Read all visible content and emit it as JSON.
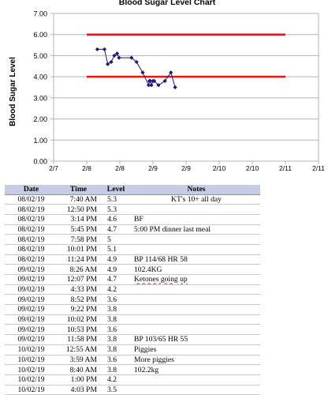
{
  "chart_data": {
    "type": "line",
    "title": "Blood Sugar Level Chart",
    "ylabel": "Blood Sugar Level",
    "xlabel": "",
    "ylim": [
      0,
      7
    ],
    "yticks": [
      "0.00",
      "1.00",
      "2.00",
      "3.00",
      "4.00",
      "5.00",
      "6.00",
      "7.00"
    ],
    "xlim_days": [
      0,
      8
    ],
    "xticks": [
      "2/7",
      "2/8",
      "2/8",
      "2/9",
      "2/9",
      "2/10",
      "2/10",
      "2/11",
      "2/11"
    ],
    "grid": "horizontal",
    "series": [
      {
        "points": [
          {
            "x": "08/02/19 07:40",
            "y": 5.3
          },
          {
            "x": "08/02/19 12:50",
            "y": 5.3
          },
          {
            "x": "08/02/19 15:14",
            "y": 4.6
          },
          {
            "x": "08/02/19 17:45",
            "y": 4.7
          },
          {
            "x": "08/02/19 19:58",
            "y": 5.0
          },
          {
            "x": "08/02/19 22:01",
            "y": 5.1
          },
          {
            "x": "08/02/19 23:24",
            "y": 4.9
          },
          {
            "x": "09/02/19 08:26",
            "y": 4.9
          },
          {
            "x": "09/02/19 12:07",
            "y": 4.7
          },
          {
            "x": "09/02/19 16:33",
            "y": 4.2
          },
          {
            "x": "09/02/19 20:52",
            "y": 3.6
          },
          {
            "x": "09/02/19 21:22",
            "y": 3.8
          },
          {
            "x": "09/02/19 22:02",
            "y": 3.8
          },
          {
            "x": "09/02/19 22:53",
            "y": 3.6
          },
          {
            "x": "09/02/19 23:58",
            "y": 3.8
          },
          {
            "x": "10/02/19 00:55",
            "y": 3.8
          },
          {
            "x": "10/02/19 03:59",
            "y": 3.6
          },
          {
            "x": "10/02/19 08:40",
            "y": 3.8
          },
          {
            "x": "10/02/19 13:00",
            "y": 4.2
          },
          {
            "x": "10/02/19 16:03",
            "y": 3.5
          }
        ],
        "color": "#1a1a7a"
      },
      {
        "values": [
          6.0,
          6.0
        ],
        "color": "#ee1111"
      },
      {
        "values": [
          4.0,
          4.0
        ],
        "color": "#ee1111"
      }
    ]
  },
  "table": {
    "headers": [
      "Date",
      "Time",
      "Level",
      "Notes"
    ],
    "rows": [
      [
        "08/02/19",
        "7:40 AM",
        "5.3",
        "KT's 10+ all day"
      ],
      [
        "08/02/19",
        "12:50 PM",
        "5.3",
        ""
      ],
      [
        "08/02/19",
        "3:14 PM",
        "4.6",
        "BF"
      ],
      [
        "08/02/19",
        "5:45 PM",
        "4.7",
        "5:00 PM dinner last meal"
      ],
      [
        "08/02/19",
        "7:58 PM",
        "5",
        ""
      ],
      [
        "08/02/19",
        "10:01 PM",
        "5.1",
        ""
      ],
      [
        "08/02/19",
        "11:24 PM",
        "4.9",
        "BP 114/68 HR 58"
      ],
      [
        "09/02/19",
        "8:26 AM",
        "4.9",
        "102.4KG"
      ],
      [
        "09/02/19",
        "12:07 PM",
        "4.7",
        "Ketones going up"
      ],
      [
        "09/02/19",
        "4:33 PM",
        "4.2",
        ""
      ],
      [
        "09/02/19",
        "8:52 PM",
        "3.6",
        ""
      ],
      [
        "09/02/19",
        "9:22 PM",
        "3.8",
        ""
      ],
      [
        "09/02/19",
        "10:02 PM",
        "3.8",
        ""
      ],
      [
        "09/02/19",
        "10:53 PM",
        "3.6",
        ""
      ],
      [
        "09/02/19",
        "11:58 PM",
        "3.8",
        "BP 103/65 HR 55"
      ],
      [
        "10/02/19",
        "12:55 AM",
        "3.8",
        "Piggies"
      ],
      [
        "10/02/19",
        "3:59 AM",
        "3.6",
        "More piggies"
      ],
      [
        "10/02/19",
        "8:40 AM",
        "3.8",
        "102.2kg"
      ],
      [
        "10/02/19",
        "1:00 PM",
        "4.2",
        ""
      ],
      [
        "10/02/19",
        "4:03 PM",
        "3.5",
        ""
      ]
    ],
    "note_classes": [
      "center",
      "",
      "",
      "",
      "",
      "",
      "",
      "",
      "squiggle",
      "",
      "",
      "",
      "",
      "",
      "",
      "",
      "",
      "",
      "",
      ""
    ]
  }
}
